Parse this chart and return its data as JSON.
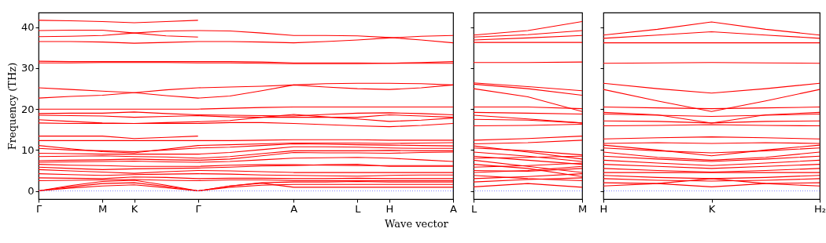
{
  "chart_data": [
    {
      "type": "line",
      "xlabel": "Wave vector",
      "ylabel": "Frequency (THz)",
      "ylim": [
        -2,
        43.6
      ],
      "categories": [
        "Γ",
        null,
        "M",
        "K",
        null,
        "Γ",
        null,
        null,
        "A",
        null,
        "L",
        "H",
        null,
        "A"
      ],
      "yticks": [
        0,
        10,
        20,
        30,
        40
      ],
      "ref_lines": [
        {
          "axis": "y",
          "value": 0,
          "color": "#8080ff",
          "line_style": "dotted"
        }
      ],
      "series": [
        {
          "color": "#ff0000",
          "values": [
            41.7,
            41.6,
            41.4,
            41.1,
            41.4,
            41.7,
            null,
            null,
            null,
            null,
            null,
            null,
            null,
            null
          ]
        },
        {
          "color": "#ff0000",
          "values": [
            39.2,
            39.3,
            39.3,
            38.6,
            37.9,
            37.6,
            null,
            null,
            null,
            null,
            null,
            null,
            null,
            null
          ]
        },
        {
          "color": "#ff0000",
          "values": [
            37.7,
            37.8,
            38.0,
            38.6,
            39.1,
            39.2,
            39.1,
            38.6,
            38.0,
            38.0,
            37.9,
            37.5,
            36.9,
            36.2
          ]
        },
        {
          "color": "#ff0000",
          "values": [
            36.5,
            36.5,
            36.4,
            36.1,
            36.3,
            36.5,
            36.5,
            36.4,
            36.2,
            36.5,
            36.9,
            37.4,
            37.8,
            38.0
          ]
        },
        {
          "color": "#ff0000",
          "values": [
            31.7,
            31.6,
            31.6,
            31.6,
            31.6,
            31.6,
            31.6,
            31.5,
            31.3,
            31.3,
            31.3,
            31.2,
            31.4,
            31.6
          ]
        },
        {
          "color": "#ff0000",
          "values": [
            31.3,
            31.3,
            31.4,
            31.4,
            31.4,
            31.3,
            31.3,
            31.2,
            31.1,
            31.1,
            31.1,
            31.2,
            31.2,
            31.2
          ]
        },
        {
          "color": "#ff0000",
          "values": [
            25.2,
            24.8,
            24.4,
            24.0,
            23.3,
            22.7,
            23.2,
            24.5,
            25.9,
            25.4,
            25.0,
            24.8,
            25.2,
            25.9
          ]
        },
        {
          "color": "#ff0000",
          "values": [
            22.7,
            23.1,
            23.4,
            24.0,
            24.7,
            25.2,
            25.4,
            25.6,
            25.9,
            26.2,
            26.3,
            26.3,
            26.2,
            25.9
          ]
        },
        {
          "color": "#ff0000",
          "values": [
            20.0,
            20.0,
            20.0,
            20.0,
            20.0,
            20.0,
            20.2,
            20.4,
            20.5,
            20.5,
            20.5,
            20.5,
            20.5,
            20.5
          ]
        },
        {
          "color": "#ff0000",
          "values": [
            18.9,
            19.0,
            19.0,
            19.3,
            18.9,
            18.6,
            18.5,
            18.4,
            18.3,
            18.7,
            19.0,
            19.1,
            18.9,
            18.6
          ]
        },
        {
          "color": "#ff0000",
          "values": [
            18.5,
            18.4,
            18.3,
            18.0,
            18.2,
            18.4,
            18.1,
            18.0,
            18.0,
            18.0,
            18.0,
            18.6,
            18.3,
            18.0
          ]
        },
        {
          "color": "#ff0000",
          "values": [
            17.4,
            17.0,
            16.6,
            16.5,
            16.7,
            16.9,
            17.2,
            18.0,
            18.7,
            18.1,
            17.6,
            17.0,
            17.3,
            17.8
          ]
        },
        {
          "color": "#ff0000",
          "values": [
            16.6,
            16.5,
            16.5,
            16.5,
            16.5,
            16.5,
            16.7,
            16.7,
            16.5,
            16.2,
            15.9,
            15.7,
            16.0,
            16.5
          ]
        },
        {
          "color": "#ff0000",
          "values": [
            13.4,
            13.4,
            13.4,
            12.8,
            13.1,
            13.4,
            null,
            null,
            null,
            null,
            null,
            null,
            null,
            null
          ]
        },
        {
          "color": "#ff0000",
          "values": [
            12.3,
            12.3,
            12.3,
            12.3,
            12.3,
            12.3,
            12.3,
            12.4,
            12.5,
            12.5,
            12.5,
            12.4,
            12.4,
            12.4
          ]
        },
        {
          "color": "#ff0000",
          "values": [
            11.1,
            10.3,
            9.6,
            9.3,
            10.2,
            11.1,
            11.3,
            11.5,
            11.7,
            11.7,
            11.7,
            11.6,
            11.7,
            11.8
          ]
        },
        {
          "color": "#ff0000",
          "values": [
            10.4,
            10.0,
            9.8,
            9.6,
            10.0,
            10.5,
            10.7,
            11.1,
            11.5,
            11.4,
            11.3,
            11.2,
            11.1,
            11.0
          ]
        },
        {
          "color": "#ff0000",
          "values": [
            9.2,
            9.1,
            9.0,
            9.0,
            9.0,
            9.0,
            9.4,
            10.1,
            10.8,
            10.8,
            10.7,
            10.5,
            10.4,
            10.4
          ]
        },
        {
          "color": "#ff0000",
          "values": [
            8.4,
            8.5,
            8.6,
            8.4,
            8.3,
            8.0,
            8.4,
            9.1,
            9.8,
            9.8,
            9.8,
            9.9,
            9.8,
            9.8
          ]
        },
        {
          "color": "#ff0000",
          "values": [
            7.4,
            7.5,
            7.6,
            7.8,
            7.6,
            7.5,
            7.8,
            8.6,
            9.4,
            9.3,
            9.3,
            9.2,
            9.4,
            9.5
          ]
        },
        {
          "color": "#ff0000",
          "values": [
            7.0,
            7.1,
            7.2,
            7.3,
            7.1,
            7.0,
            7.2,
            7.6,
            8.0,
            8.1,
            8.2,
            8.0,
            7.6,
            7.2
          ]
        },
        {
          "color": "#ff0000",
          "values": [
            6.5,
            6.3,
            6.2,
            6.0,
            6.0,
            6.0,
            6.3,
            6.4,
            6.4,
            6.3,
            6.2,
            6.2,
            6.2,
            6.2
          ]
        },
        {
          "color": "#ff0000",
          "values": [
            5.8,
            5.5,
            5.2,
            5.4,
            5.5,
            5.6,
            5.8,
            6.1,
            6.2,
            6.4,
            6.5,
            6.0,
            6.0,
            6.0
          ]
        },
        {
          "color": "#ff0000",
          "values": [
            5.2,
            4.9,
            4.6,
            4.3,
            4.7,
            5.0,
            4.9,
            4.7,
            4.5,
            4.5,
            4.5,
            4.5,
            4.5,
            4.5
          ]
        },
        {
          "color": "#ff0000",
          "values": [
            4.2,
            4.0,
            3.8,
            4.0,
            4.1,
            4.2,
            4.1,
            3.9,
            3.8,
            3.7,
            3.6,
            3.8,
            3.9,
            3.9
          ]
        },
        {
          "color": "#ff0000",
          "values": [
            3.2,
            3.1,
            3.0,
            3.4,
            3.3,
            3.0,
            3.1,
            3.1,
            3.0,
            3.0,
            3.1,
            3.0,
            3.0,
            3.0
          ]
        },
        {
          "color": "#ff0000",
          "values": [
            2.5,
            2.6,
            2.7,
            2.8,
            2.6,
            2.5,
            2.7,
            2.7,
            2.5,
            2.5,
            2.5,
            2.5,
            2.5,
            2.5
          ]
        },
        {
          "color": "#ff0000",
          "values": [
            0,
            1.3,
            2.3,
            2.6,
            1.4,
            0,
            1.2,
            2.0,
            2.2,
            2.2,
            2.3,
            2.2,
            2.2,
            2.2
          ]
        },
        {
          "color": "#ff0000",
          "values": [
            0,
            1.0,
            1.8,
            2.0,
            1.1,
            0,
            0.9,
            1.4,
            1.6,
            1.6,
            1.6,
            1.6,
            1.6,
            1.6
          ]
        },
        {
          "color": "#ff0000",
          "values": [
            0,
            0.7,
            1.2,
            1.5,
            0.8,
            0,
            1.2,
            1.9,
            0.9,
            0.9,
            0.9,
            0.9,
            0.9,
            0.9
          ]
        }
      ]
    },
    {
      "type": "line",
      "ylim": [
        -2,
        43.6
      ],
      "tick_labels": "x",
      "categories": [
        "L",
        null,
        "M"
      ],
      "yticks": [
        0,
        10,
        20,
        30,
        40
      ],
      "ref_lines": [
        {
          "axis": "y",
          "value": 0,
          "color": "#8080ff",
          "line_style": "dotted"
        }
      ],
      "series": [
        {
          "color": "#ff0000",
          "values": [
            38.1,
            39.2,
            41.4
          ]
        },
        {
          "color": "#ff0000",
          "values": [
            37.6,
            38.2,
            39.2
          ]
        },
        {
          "color": "#ff0000",
          "values": [
            36.9,
            37.4,
            38.0
          ]
        },
        {
          "color": "#ff0000",
          "values": [
            36.3,
            36.3,
            36.3
          ]
        },
        {
          "color": "#ff0000",
          "values": [
            31.4,
            31.4,
            31.5
          ]
        },
        {
          "color": "#ff0000",
          "values": [
            26.4,
            25.5,
            24.5
          ]
        },
        {
          "color": "#ff0000",
          "values": [
            26.1,
            25.0,
            23.4
          ]
        },
        {
          "color": "#ff0000",
          "values": [
            25.0,
            23.0,
            19.4
          ]
        },
        {
          "color": "#ff0000",
          "values": [
            20.5,
            20.5,
            20.1
          ]
        },
        {
          "color": "#ff0000",
          "values": [
            19.2,
            19.0,
            18.8
          ]
        },
        {
          "color": "#ff0000",
          "values": [
            18.5,
            17.6,
            16.6
          ]
        },
        {
          "color": "#ff0000",
          "values": [
            17.5,
            17.3,
            16.6
          ]
        },
        {
          "color": "#ff0000",
          "values": [
            15.9,
            16.0,
            16.3
          ]
        },
        {
          "color": "#ff0000",
          "values": [
            12.4,
            12.8,
            13.4
          ]
        },
        {
          "color": "#ff0000",
          "values": [
            11.5,
            11.8,
            12.4
          ]
        },
        {
          "color": "#ff0000",
          "values": [
            11.0,
            9.5,
            7.8
          ]
        },
        {
          "color": "#ff0000",
          "values": [
            10.5,
            9.8,
            8.8
          ]
        },
        {
          "color": "#ff0000",
          "values": [
            9.5,
            8.5,
            7.2
          ]
        },
        {
          "color": "#ff0000",
          "values": [
            8.5,
            7.5,
            6.5
          ]
        },
        {
          "color": "#ff0000",
          "values": [
            8.0,
            8.2,
            8.5
          ]
        },
        {
          "color": "#ff0000",
          "values": [
            7.5,
            6.0,
            4.5
          ]
        },
        {
          "color": "#ff0000",
          "values": [
            6.5,
            5.5,
            3.5
          ]
        },
        {
          "color": "#ff0000",
          "values": [
            5.8,
            6.2,
            6.8
          ]
        },
        {
          "color": "#ff0000",
          "values": [
            5.0,
            4.8,
            5.5
          ]
        },
        {
          "color": "#ff0000",
          "values": [
            4.5,
            5.0,
            6.0
          ]
        },
        {
          "color": "#ff0000",
          "values": [
            3.8,
            3.0,
            2.5
          ]
        },
        {
          "color": "#ff0000",
          "values": [
            3.0,
            3.5,
            4.2
          ]
        },
        {
          "color": "#ff0000",
          "values": [
            2.2,
            2.8,
            3.2
          ]
        },
        {
          "color": "#ff0000",
          "values": [
            1.0,
            1.8,
            0.9
          ]
        }
      ]
    },
    {
      "type": "line",
      "ylim": [
        -2,
        43.6
      ],
      "tick_labels": "x",
      "categories": [
        "H",
        null,
        "K",
        null,
        "H₂"
      ],
      "yticks": [
        0,
        10,
        20,
        30,
        40
      ],
      "ref_lines": [
        {
          "axis": "y",
          "value": 0,
          "color": "#8080ff",
          "line_style": "dotted"
        }
      ],
      "series": [
        {
          "color": "#ff0000",
          "values": [
            38.1,
            39.5,
            41.3,
            39.5,
            38.1
          ]
        },
        {
          "color": "#ff0000",
          "values": [
            37.3,
            38.1,
            38.9,
            38.1,
            37.3
          ]
        },
        {
          "color": "#ff0000",
          "values": [
            36.2,
            36.2,
            36.2,
            36.2,
            36.2
          ]
        },
        {
          "color": "#ff0000",
          "values": [
            31.2,
            31.3,
            31.4,
            31.3,
            31.2
          ]
        },
        {
          "color": "#ff0000",
          "values": [
            26.3,
            25.0,
            23.9,
            25.0,
            26.3
          ]
        },
        {
          "color": "#ff0000",
          "values": [
            24.8,
            22.0,
            19.4,
            22.0,
            24.8
          ]
        },
        {
          "color": "#ff0000",
          "values": [
            20.5,
            20.3,
            20.1,
            20.3,
            20.5
          ]
        },
        {
          "color": "#ff0000",
          "values": [
            19.2,
            18.6,
            16.6,
            18.6,
            19.2
          ]
        },
        {
          "color": "#ff0000",
          "values": [
            18.8,
            18.5,
            18.2,
            18.5,
            18.8
          ]
        },
        {
          "color": "#ff0000",
          "values": [
            17.1,
            17.0,
            16.6,
            17.0,
            17.1
          ]
        },
        {
          "color": "#ff0000",
          "values": [
            15.9,
            16.0,
            16.2,
            16.0,
            15.9
          ]
        },
        {
          "color": "#ff0000",
          "values": [
            12.7,
            13.0,
            13.2,
            13.0,
            12.7
          ]
        },
        {
          "color": "#ff0000",
          "values": [
            11.6,
            11.8,
            11.6,
            11.8,
            11.6
          ]
        },
        {
          "color": "#ff0000",
          "values": [
            11.2,
            10.0,
            8.6,
            10.0,
            11.2
          ]
        },
        {
          "color": "#ff0000",
          "values": [
            10.5,
            9.8,
            9.3,
            9.8,
            10.5
          ]
        },
        {
          "color": "#ff0000",
          "values": [
            9.5,
            8.2,
            7.5,
            8.2,
            9.5
          ]
        },
        {
          "color": "#ff0000",
          "values": [
            8.5,
            7.8,
            7.2,
            7.8,
            8.5
          ]
        },
        {
          "color": "#ff0000",
          "values": [
            7.5,
            6.8,
            6.2,
            6.8,
            7.5
          ]
        },
        {
          "color": "#ff0000",
          "values": [
            6.5,
            6.0,
            5.5,
            6.0,
            6.5
          ]
        },
        {
          "color": "#ff0000",
          "values": [
            5.5,
            5.0,
            4.6,
            5.0,
            5.5
          ]
        },
        {
          "color": "#ff0000",
          "values": [
            4.5,
            4.5,
            4.5,
            4.5,
            4.5
          ]
        },
        {
          "color": "#ff0000",
          "values": [
            3.8,
            3.3,
            3.0,
            3.3,
            3.8
          ]
        },
        {
          "color": "#ff0000",
          "values": [
            3.0,
            2.6,
            2.4,
            2.6,
            3.0
          ]
        },
        {
          "color": "#ff0000",
          "values": [
            2.0,
            1.8,
            1.0,
            1.8,
            2.0
          ]
        },
        {
          "color": "#ff0000",
          "values": [
            1.2,
            1.8,
            3.0,
            1.8,
            1.2
          ]
        }
      ]
    }
  ]
}
